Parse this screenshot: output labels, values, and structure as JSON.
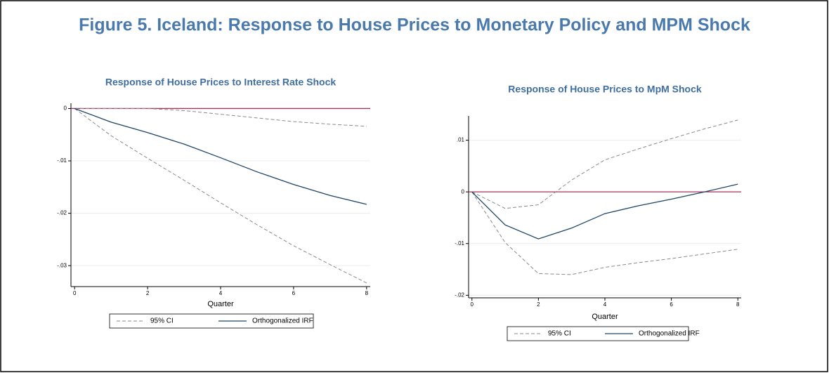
{
  "title": "Figure 5. Iceland: Response to House Prices to Monetary Policy and MPM Shock",
  "chart_data": [
    {
      "type": "line",
      "title": "Response of House Prices to Interest Rate Shock",
      "x_label": "Quarter",
      "x": [
        0,
        1,
        2,
        3,
        4,
        5,
        6,
        7,
        8
      ],
      "series": [
        {
          "name": "95% CI",
          "color": "#8a8a8a",
          "dashed": true,
          "lower": [
            0,
            -0.0052,
            -0.0095,
            -0.0137,
            -0.018,
            -0.0222,
            -0.0262,
            -0.0298,
            -0.0333
          ],
          "upper": [
            0,
            0,
            0,
            -0.0004,
            -0.0011,
            -0.0018,
            -0.0025,
            -0.003,
            -0.0034
          ]
        },
        {
          "name": "Orthogonalized IRF",
          "color": "#1f4468",
          "values": [
            0,
            -0.0026,
            -0.0046,
            -0.0068,
            -0.0094,
            -0.0121,
            -0.0145,
            -0.0166,
            -0.0183
          ]
        }
      ],
      "reference_line": {
        "value": 0,
        "color": "#a8315f"
      },
      "xlim": [
        -0.1,
        8.1
      ],
      "xticks": [
        0,
        2,
        4,
        6,
        8
      ],
      "ylim": [
        -0.034,
        0.001
      ],
      "yticks": [
        0,
        {
          "value": -0.01,
          "label": "-.01"
        },
        {
          "value": -0.02,
          "label": "-.02"
        },
        {
          "value": -0.03,
          "label": "-.03"
        }
      ],
      "grid": true
    },
    {
      "type": "line",
      "title": "Response of House Prices to MpM Shock",
      "x_label": "Quarter",
      "x": [
        0,
        1,
        2,
        3,
        4,
        5,
        6,
        7,
        8
      ],
      "series": [
        {
          "name": "95% CI",
          "color": "#8a8a8a",
          "dashed": true,
          "lower": [
            0,
            -0.0098,
            -0.0158,
            -0.016,
            -0.0146,
            -0.0137,
            -0.0129,
            -0.012,
            -0.0111
          ],
          "upper": [
            0,
            -0.0032,
            -0.0025,
            0.0023,
            0.0062,
            0.0083,
            0.0103,
            0.0122,
            0.0139
          ]
        },
        {
          "name": "Orthogonalized IRF",
          "color": "#1f4468",
          "values": [
            0,
            -0.0064,
            -0.0091,
            -0.007,
            -0.0042,
            -0.0027,
            -0.0014,
            0,
            0.0015
          ]
        }
      ],
      "reference_line": {
        "value": 0,
        "color": "#a8315f"
      },
      "xlim": [
        -0.1,
        8.1
      ],
      "xticks": [
        0,
        2,
        4,
        6,
        8
      ],
      "ylim": [
        -0.0205,
        0.0147
      ],
      "yticks": [
        {
          "value": 0.01,
          "label": ".01"
        },
        0,
        {
          "value": -0.01,
          "label": "-.01"
        },
        {
          "value": -0.02,
          "label": "-.02"
        }
      ],
      "grid": true
    }
  ]
}
